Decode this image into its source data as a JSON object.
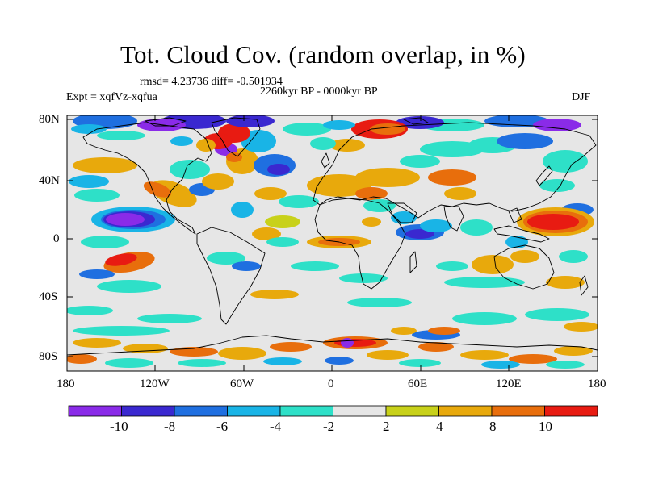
{
  "title": "Tot. Cloud Cov. (random overlap, in %)",
  "rmsd_text": "rmsd= 4.23736 diff= -0.501934",
  "period": "2260kyr BP - 0000kyr BP",
  "experiment": "Expt = xqfVz-xqfua",
  "season": "DJF",
  "lat_ticks": [
    "80N",
    "40N",
    "0",
    "40S",
    "80S"
  ],
  "lon_ticks": [
    "180",
    "120W",
    "60W",
    "0",
    "60E",
    "120E",
    "180"
  ],
  "colorbar": {
    "colors": [
      "#8a2be8",
      "#3a28d0",
      "#1f6fe0",
      "#19b4e6",
      "#2ee0c8",
      "#e6e6e6",
      "#c8d11a",
      "#e8a90c",
      "#e86e0c",
      "#e81b12"
    ],
    "labels": [
      "-10",
      "-8",
      "-6",
      "-4",
      "-2",
      "2",
      "4",
      "8",
      "10"
    ]
  },
  "colors": {
    "background_field": "#e6e6e6",
    "coastline": "#000000"
  }
}
